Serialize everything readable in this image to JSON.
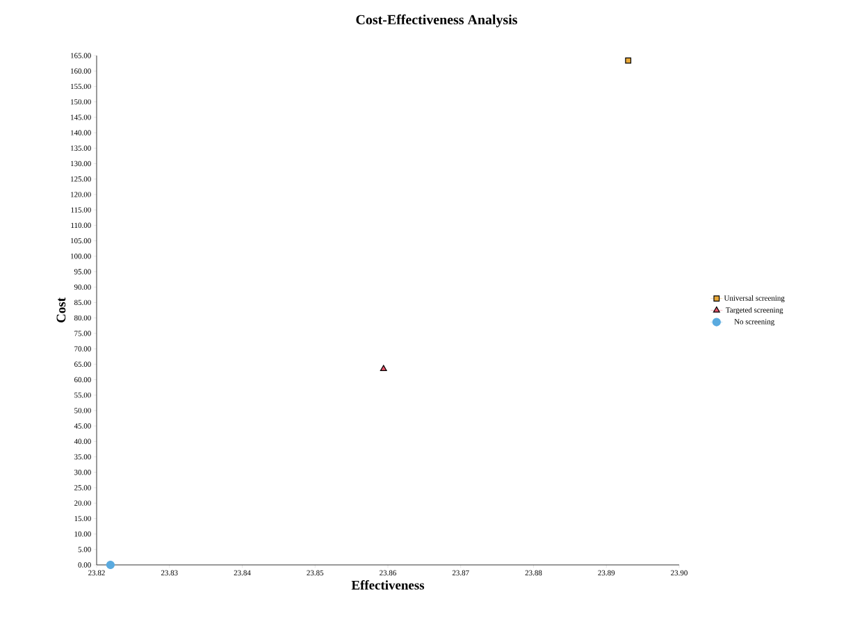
{
  "chart_data": {
    "type": "scatter",
    "title": "Cost-Effectiveness Analysis",
    "xlabel": "Effectiveness",
    "ylabel": "Cost",
    "series": [
      {
        "name": "Universal screening",
        "color": "#e8a838",
        "marker": "square",
        "x": [
          23.893
        ],
        "values": [
          163.4
        ]
      },
      {
        "name": "Targeted screening",
        "color": "#e8546a",
        "marker": "triangle",
        "x": [
          23.8594
        ],
        "values": [
          63.5
        ]
      },
      {
        "name": "No screening",
        "color": "#5aaadf",
        "marker": "circle",
        "x": [
          23.8219
        ],
        "values": [
          0
        ]
      }
    ],
    "xlim": [
      23.82,
      23.9
    ],
    "xticks": [
      23.82,
      23.83,
      23.84,
      23.85,
      23.86,
      23.87,
      23.88,
      23.89,
      {
        "value": 23.9,
        "label": "23.90"
      }
    ],
    "ylim": [
      0,
      165
    ],
    "yticks": [
      {
        "value": 0,
        "label": "0.00"
      },
      {
        "value": 5,
        "label": "5.00"
      },
      {
        "value": 10,
        "label": "10.00"
      },
      {
        "value": 15,
        "label": "15.00"
      },
      {
        "value": 20,
        "label": "20.00"
      },
      {
        "value": 25,
        "label": "25.00"
      },
      {
        "value": 30,
        "label": "30.00"
      },
      {
        "value": 35,
        "label": "35.00"
      },
      {
        "value": 40,
        "label": "40.00"
      },
      {
        "value": 45,
        "label": "45.00"
      },
      {
        "value": 50,
        "label": "50.00"
      },
      {
        "value": 55,
        "label": "55.00"
      },
      {
        "value": 60,
        "label": "60.00"
      },
      {
        "value": 65,
        "label": "65.00"
      },
      {
        "value": 70,
        "label": "70.00"
      },
      {
        "value": 75,
        "label": "75.00"
      },
      {
        "value": 80,
        "label": "80.00"
      },
      {
        "value": 85,
        "label": "85.00"
      },
      {
        "value": 90,
        "label": "90.00"
      },
      {
        "value": 95,
        "label": "95.00"
      },
      {
        "value": 100,
        "label": "100.00"
      },
      {
        "value": 105,
        "label": "105.00"
      },
      {
        "value": 110,
        "label": "110.00"
      },
      {
        "value": 115,
        "label": "115.00"
      },
      {
        "value": 120,
        "label": "120.00"
      },
      {
        "value": 125,
        "label": "125.00"
      },
      {
        "value": 130,
        "label": "130.00"
      },
      {
        "value": 135,
        "label": "135.00"
      },
      {
        "value": 140,
        "label": "140.00"
      },
      {
        "value": 145,
        "label": "145.00"
      },
      {
        "value": 150,
        "label": "150.00"
      },
      {
        "value": 155,
        "label": "155.00"
      },
      {
        "value": 160,
        "label": "160.00"
      },
      {
        "value": 165,
        "label": "165.00"
      }
    ],
    "legend": "right",
    "grid": false
  }
}
